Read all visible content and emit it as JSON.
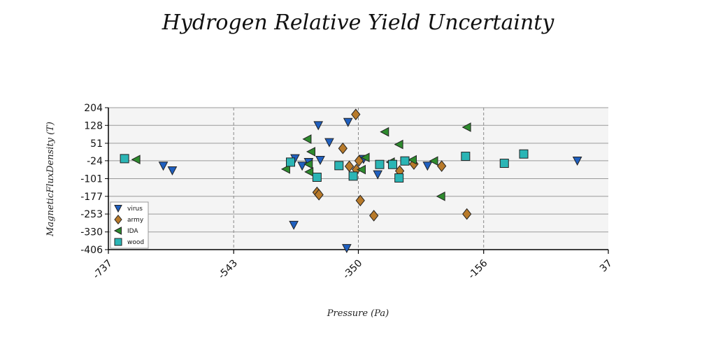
{
  "chart_data": {
    "type": "scatter",
    "title": "Hydrogen Relative Yield Uncertainty",
    "xlabel": "Pressure (Pa)",
    "ylabel": "MagneticFluxDensity (T)",
    "xlim": [
      -737,
      37
    ],
    "ylim": [
      -406,
      204
    ],
    "xticks": [
      -737,
      -543,
      -350,
      -156,
      37
    ],
    "xtick_labels": [
      "-737",
      "-543",
      "-350",
      "-156",
      "37"
    ],
    "yticks": [
      204,
      128,
      51,
      -24,
      -101,
      -177,
      -253,
      -330,
      -406
    ],
    "ytick_labels": [
      "204",
      "128",
      "51",
      "-24",
      "-101",
      "-177",
      "-253",
      "-330",
      "-406"
    ],
    "grid": true,
    "legend_position": "bottom-left",
    "series": [
      {
        "name": "virus",
        "marker": "triangle-down",
        "color": "#1f5fbf",
        "x": [
          -448,
          -437,
          -409,
          -366,
          -395,
          -412,
          -427,
          -450,
          -342,
          -320,
          -243,
          -652,
          -638,
          -368,
          -11
        ],
        "y": [
          -14,
          -46,
          -21,
          142,
          55,
          128,
          -30,
          -300,
          -17,
          -83,
          -46,
          -46,
          -66,
          -400,
          -24
        ]
      },
      {
        "name": "army",
        "marker": "diamond",
        "color": "#b87a2a",
        "x": [
          -354,
          -374,
          -349,
          -364,
          -353,
          -414,
          -411,
          -347,
          -326,
          -286,
          -264,
          -221,
          -182
        ],
        "y": [
          175,
          29,
          -24,
          -48,
          -62,
          -160,
          -170,
          -195,
          -260,
          -68,
          -38,
          -47,
          -253
        ]
      },
      {
        "name": "IDA",
        "marker": "triangle-left",
        "color": "#2e8b2e",
        "x": [
          -694,
          -429,
          -423,
          -427,
          -339,
          -345,
          -309,
          -300,
          -287,
          -266,
          -233,
          -462,
          -222,
          -182,
          -426
        ],
        "y": [
          -19,
          69,
          15,
          -39,
          -10,
          -62,
          100,
          -30,
          46,
          -20,
          -25,
          -60,
          -177,
          120,
          -72
        ]
      },
      {
        "name": "wood",
        "marker": "square",
        "color": "#2bb5b5",
        "x": [
          -712,
          -455,
          -414,
          -380,
          -358,
          -317,
          -297,
          -278,
          -287,
          -184,
          -124,
          -94
        ],
        "y": [
          -15,
          -30,
          -95,
          -45,
          -90,
          -40,
          -40,
          -25,
          -98,
          -5,
          -35,
          5
        ]
      }
    ]
  }
}
